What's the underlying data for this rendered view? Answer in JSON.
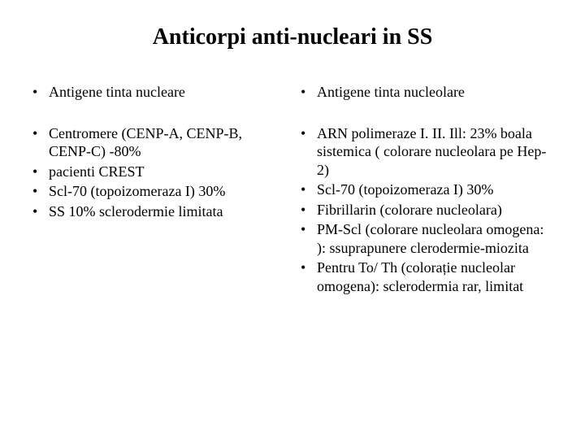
{
  "title": "Anticorpi anti-nucleari in SS",
  "left": {
    "heading": "Antigene tinta nucleare",
    "items": [
      "Centromere (CENP-A, CENP-B, CENP-C) -80%",
      "pacienti CREST",
      "Scl-70 (topoizomeraza I) 30%",
      "SS 10% sclerodermie limitata"
    ]
  },
  "right": {
    "heading": "Antigene tinta nucleolare",
    "items": [
      "ARN polimeraze I. II. Ill: 23% boala sistemica ( colorare nucleolara pe Hep-2)",
      "Scl-70 (topoizomeraza I) 30%",
      "Fibrillarin (colorare nucleolara)",
      "PM-Scl (colorare nucleolara omogena: ): ssuprapunere clerodermie-miozita",
      "Pentru To/ Th (colorație nucleolar omogena): sclerodermia rar, limitat"
    ]
  },
  "style": {
    "background_color": "#ffffff",
    "text_color": "#000000",
    "font_family": "Times New Roman",
    "title_fontsize": 28,
    "body_fontsize": 18,
    "bullet_char": "•"
  }
}
